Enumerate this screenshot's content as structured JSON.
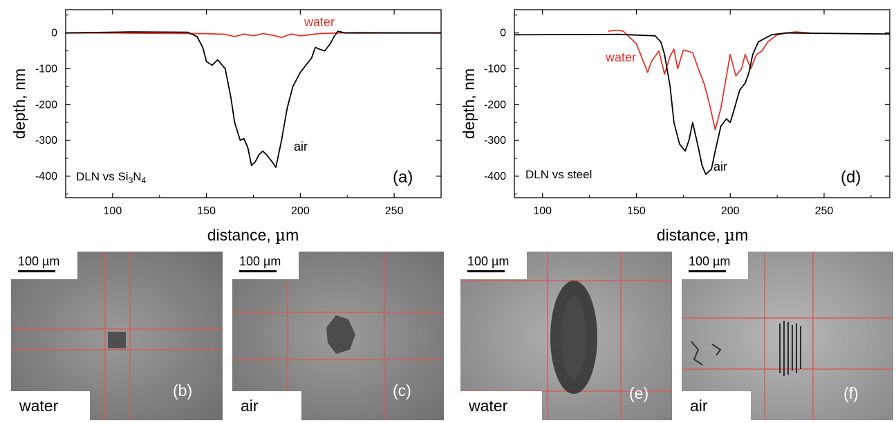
{
  "charts": {
    "chart_data": [
      {
        "type": "line",
        "ylabel": "depth, nm",
        "xlabel_prefix": "distance, ",
        "xlabel_mu": "µ",
        "xlabel_unit": "m",
        "xlim": [
          75,
          275
        ],
        "ylim": [
          -460,
          65
        ],
        "xticks": [
          100,
          150,
          200,
          250
        ],
        "yticks": [
          0,
          -100,
          -200,
          -300,
          -400
        ],
        "grid": false,
        "panel_label": "(a)",
        "annotation_prefix": "DLN vs Si",
        "annotation_sub1": "3",
        "annotation_mid": "N",
        "annotation_sub2": "4",
        "series": [
          {
            "name": "water",
            "color": "#e8332a",
            "x": [
              75,
              100,
              125,
              150,
              160,
              165,
              170,
              175,
              180,
              185,
              190,
              195,
              200,
              210,
              220,
              230,
              275
            ],
            "y": [
              0,
              0,
              -1,
              -2,
              -4,
              -10,
              -3,
              -8,
              -2,
              -6,
              -13,
              -3,
              -8,
              -2,
              0,
              1,
              0
            ]
          },
          {
            "name": "air",
            "color": "#000000",
            "x": [
              75,
              110,
              140,
              145,
              148,
              150,
              153,
              156,
              160,
              163,
              165,
              168,
              170,
              172,
              174,
              176,
              178,
              180,
              182,
              185,
              187,
              190,
              193,
              196,
              200,
              203,
              206,
              208,
              210,
              213,
              216,
              218,
              220,
              224,
              275
            ],
            "y": [
              0,
              3,
              2,
              -10,
              -40,
              -80,
              -90,
              -75,
              -100,
              -180,
              -250,
              -300,
              -295,
              -320,
              -370,
              -360,
              -340,
              -330,
              -340,
              -360,
              -375,
              -300,
              -210,
              -150,
              -110,
              -90,
              -70,
              -40,
              -45,
              -50,
              -30,
              -10,
              5,
              0,
              0
            ]
          }
        ]
      },
      {
        "type": "line",
        "ylabel": "depth, nm",
        "xlabel_prefix": "distance, ",
        "xlabel_mu": "µ",
        "xlabel_unit": "m",
        "xlim": [
          85,
          285
        ],
        "ylim": [
          -460,
          65
        ],
        "xticks": [
          100,
          150,
          200,
          250
        ],
        "yticks": [
          0,
          -100,
          -200,
          -300,
          -400
        ],
        "grid": false,
        "panel_label": "(d)",
        "annotation_prefix": "DLN vs steel",
        "series": [
          {
            "name": "water",
            "color": "#e8332a",
            "x": [
              135,
              140,
              143,
              146,
              150,
              153,
              156,
              158,
              162,
              165,
              168,
              170,
              172,
              175,
              177,
              180,
              183,
              186,
              189,
              192,
              195,
              198,
              200,
              203,
              206,
              208,
              211,
              214,
              217,
              220,
              225,
              230,
              235,
              242
            ],
            "y": [
              5,
              8,
              5,
              -10,
              -30,
              -70,
              -110,
              -80,
              -50,
              -115,
              -65,
              -45,
              -100,
              -48,
              -50,
              -55,
              -100,
              -140,
              -200,
              -270,
              -210,
              -120,
              -60,
              -120,
              -100,
              -60,
              -100,
              -60,
              -50,
              -25,
              -5,
              0,
              3,
              0
            ]
          },
          {
            "name": "air",
            "color": "#000000",
            "x": [
              85,
              140,
              160,
              163,
              165,
              168,
              170,
              173,
              176,
              178,
              180,
              183,
              185,
              187,
              190,
              192,
              195,
              198,
              200,
              202,
              205,
              208,
              210,
              212,
              215,
              222,
              230,
              285
            ],
            "y": [
              -5,
              -4,
              -8,
              -25,
              -60,
              -150,
              -250,
              -310,
              -330,
              -300,
              -250,
              -320,
              -370,
              -395,
              -380,
              -330,
              -260,
              -240,
              -250,
              -215,
              -160,
              -140,
              -110,
              -60,
              -25,
              -5,
              0,
              -3
            ]
          }
        ]
      }
    ]
  },
  "micrographs": {
    "scale_text": "100 µm",
    "panels": [
      {
        "condition": "water",
        "label": "(b)",
        "tone": "#8f8f8f"
      },
      {
        "condition": "air",
        "label": "(c)",
        "tone": "#929292"
      },
      {
        "condition": "water",
        "label": "(e)",
        "tone": "#9d9d9d"
      },
      {
        "condition": "air",
        "label": "(f)",
        "tone": "#a4a4a4"
      }
    ]
  }
}
